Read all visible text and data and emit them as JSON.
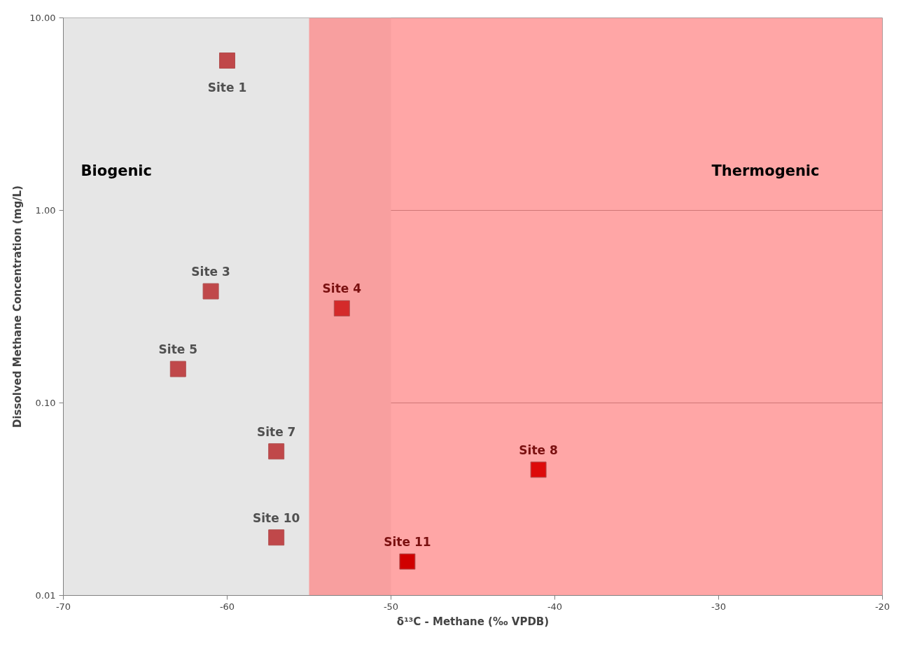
{
  "chart_data": {
    "type": "scatter",
    "xlabel": "δ¹³C - Methane (‰ VPDB)",
    "ylabel": "Dissolved Methane Concentration (mg/L)",
    "x": [
      -60,
      -61,
      -53,
      -63,
      -57,
      -41,
      -57,
      -49
    ],
    "values": [
      6.0,
      0.38,
      0.31,
      0.15,
      0.056,
      0.045,
      0.02,
      0.015
    ],
    "colors": [
      "#c0484a",
      "#c0484a",
      "#d42a2a",
      "#c0484a",
      "#c0484a",
      "#dd0a0a",
      "#c0484a",
      "#d00000"
    ],
    "value_labels": [
      "Site 1",
      "Site 3",
      "Site 4",
      "Site 5",
      "Site 7",
      "Site 8",
      "Site 10",
      "Site 11"
    ],
    "marker": "square",
    "log": "y",
    "grid": "y",
    "xlim": [
      -70,
      -20
    ],
    "xticks": [
      -70,
      -60,
      -50,
      -40,
      -30,
      -20
    ],
    "ylim": [
      0.01,
      10
    ],
    "yticks": [
      {
        "value": 0.01,
        "label": "0.01"
      },
      {
        "value": 0.1,
        "label": "0.10"
      },
      {
        "value": 1,
        "label": "1.00"
      },
      {
        "value": 10,
        "label": "10.00"
      }
    ],
    "bands": [
      {
        "axis": "x",
        "from": -70,
        "to": -50,
        "label": "Biogenic",
        "color": "#e6e6e6"
      },
      {
        "axis": "x",
        "from": -55,
        "to": -20,
        "label": "Thermogenic",
        "color": "#ff8080"
      }
    ]
  }
}
